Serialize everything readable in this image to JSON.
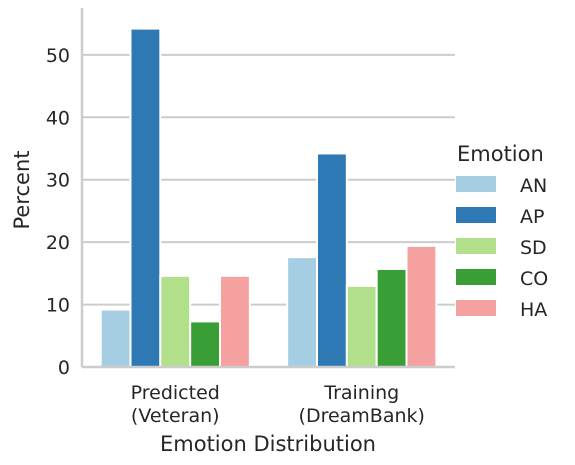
{
  "chart_data": {
    "type": "bar",
    "categories": [
      "Predicted\n(Veteran)",
      "Training\n(DreamBank)"
    ],
    "series": [
      {
        "name": "AN",
        "color": "#a6cee3",
        "values": [
          9.2,
          17.6
        ]
      },
      {
        "name": "AP",
        "color": "#2e78b4",
        "values": [
          54.2,
          34.2
        ]
      },
      {
        "name": "SD",
        "color": "#b2df8a",
        "values": [
          14.6,
          13.0
        ]
      },
      {
        "name": "CO",
        "color": "#3a9e36",
        "values": [
          7.3,
          15.7
        ]
      },
      {
        "name": "HA",
        "color": "#f4a1a0",
        "values": [
          14.6,
          19.4
        ]
      }
    ],
    "xlabel": "Emotion Distribution",
    "ylabel": "Percent",
    "ylim": [
      0,
      57.5
    ],
    "yticks": [
      0,
      10,
      20,
      30,
      40,
      50
    ],
    "grid": "horizontal",
    "legend": {
      "title": "Emotion",
      "placement": "right"
    }
  }
}
